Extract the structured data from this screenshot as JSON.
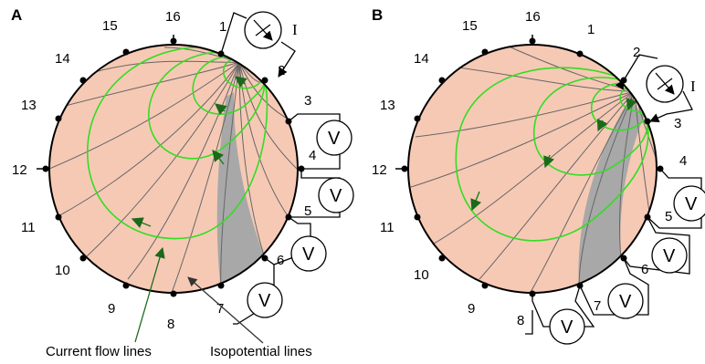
{
  "panels": [
    {
      "id": "A",
      "label": "A",
      "electrodes": [
        "1",
        "2",
        "3",
        "4",
        "5",
        "6",
        "7",
        "8",
        "9",
        "10",
        "11",
        "12",
        "13",
        "14",
        "15",
        "16"
      ],
      "current_source": {
        "from": "1",
        "to": "2",
        "label": "I"
      },
      "voltmeters": [
        {
          "between": [
            "3",
            "4"
          ],
          "label": "V"
        },
        {
          "between": [
            "4",
            "5"
          ],
          "label": "V"
        },
        {
          "between": [
            "5",
            "6"
          ],
          "label": "V"
        },
        {
          "between": [
            "6",
            "7"
          ],
          "label": "V"
        }
      ]
    },
    {
      "id": "B",
      "label": "B",
      "electrodes": [
        "1",
        "2",
        "3",
        "4",
        "5",
        "6",
        "7",
        "8",
        "9",
        "10",
        "11",
        "12",
        "13",
        "14",
        "15",
        "16"
      ],
      "current_source": {
        "from": "2",
        "to": "3",
        "label": "I"
      },
      "voltmeters": [
        {
          "between": [
            "4",
            "5"
          ],
          "label": "V"
        },
        {
          "between": [
            "5",
            "6"
          ],
          "label": "V"
        },
        {
          "between": [
            "6",
            "7"
          ],
          "label": "V"
        },
        {
          "between": [
            "7",
            "8"
          ],
          "label": "V"
        }
      ]
    }
  ],
  "annotations": {
    "current_flow": "Current flow lines",
    "isopotential": "Isopotential lines"
  },
  "colors": {
    "disk_fill": "#f6c9b5",
    "current_line": "#33dd22",
    "isopotential_line": "#666666",
    "highlight_region": "#a8a8a8",
    "current_arrow": "#1a7a1a"
  }
}
